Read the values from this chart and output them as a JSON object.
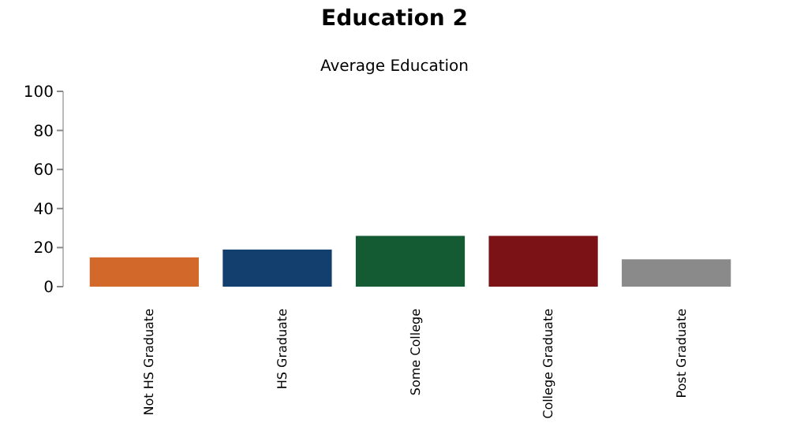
{
  "chart_data": {
    "type": "bar",
    "title": "Education 2",
    "subtitle": "Average Education",
    "categories": [
      "Not HS Graduate",
      "HS Graduate",
      "Some College",
      "College Graduate",
      "Post Graduate"
    ],
    "values": [
      15,
      19,
      26,
      26,
      14
    ],
    "colors": [
      "#d2692a",
      "#123f6e",
      "#145a32",
      "#7a1216",
      "#8a8a8a"
    ],
    "ylim": [
      0,
      100
    ],
    "yticks": [
      0,
      20,
      40,
      60,
      80,
      100
    ],
    "grid": false
  }
}
